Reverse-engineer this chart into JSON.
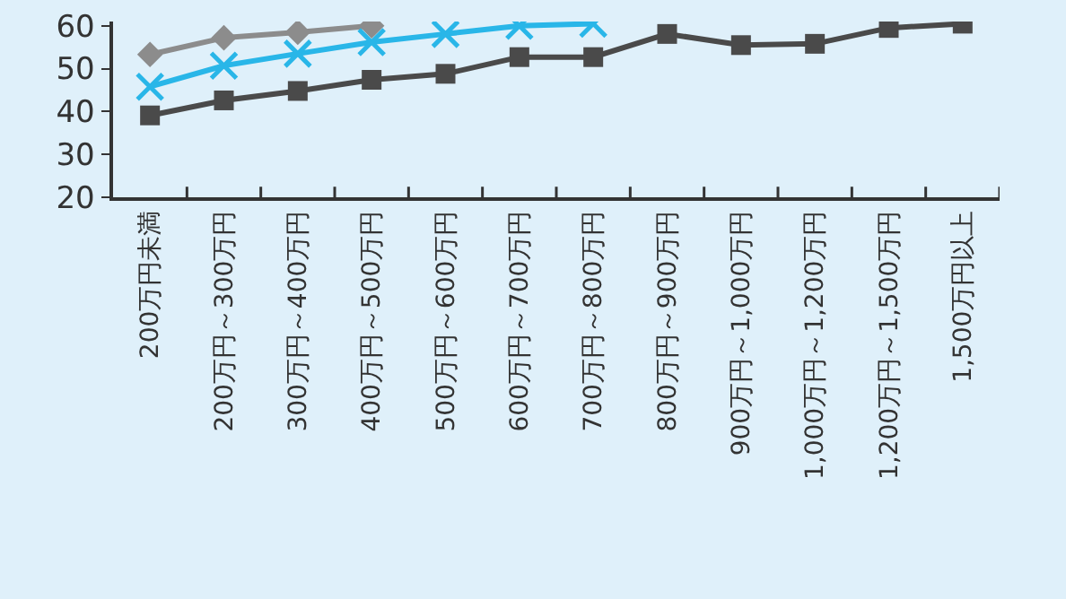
{
  "chart_data": {
    "type": "line",
    "categories": [
      "200万円未満",
      "200万円～300万円",
      "300万円～400万円",
      "400万円～500万円",
      "500万円～600万円",
      "600万円～700万円",
      "700万円～800万円",
      "800万円～900万円",
      "900万円～1,000万円",
      "1,000万円～1,200万円",
      "1,200万円～1,500万円",
      "1,500万円以上"
    ],
    "series": [
      {
        "color": "#8c8c8c",
        "marker": "diamond",
        "values": [
          53.3,
          57.2,
          58.5,
          60,
          null,
          null,
          null,
          null,
          null,
          null,
          null,
          null
        ]
      },
      {
        "color": "#29b6e8",
        "marker": "cross",
        "values": [
          45.8,
          50.7,
          53.5,
          56.2,
          58.1,
          60,
          60.5,
          null,
          null,
          null,
          null,
          null
        ]
      },
      {
        "color": "#4a4a4a",
        "marker": "square",
        "values": [
          39.1,
          42.6,
          44.8,
          47.4,
          48.8,
          52.7,
          52.7,
          58.1,
          55.5,
          55.8,
          59.5,
          60.5
        ]
      }
    ],
    "ylim": [
      20,
      61
    ],
    "yticks": [
      20,
      30,
      40,
      50,
      60
    ],
    "grid": false,
    "legend": false
  }
}
